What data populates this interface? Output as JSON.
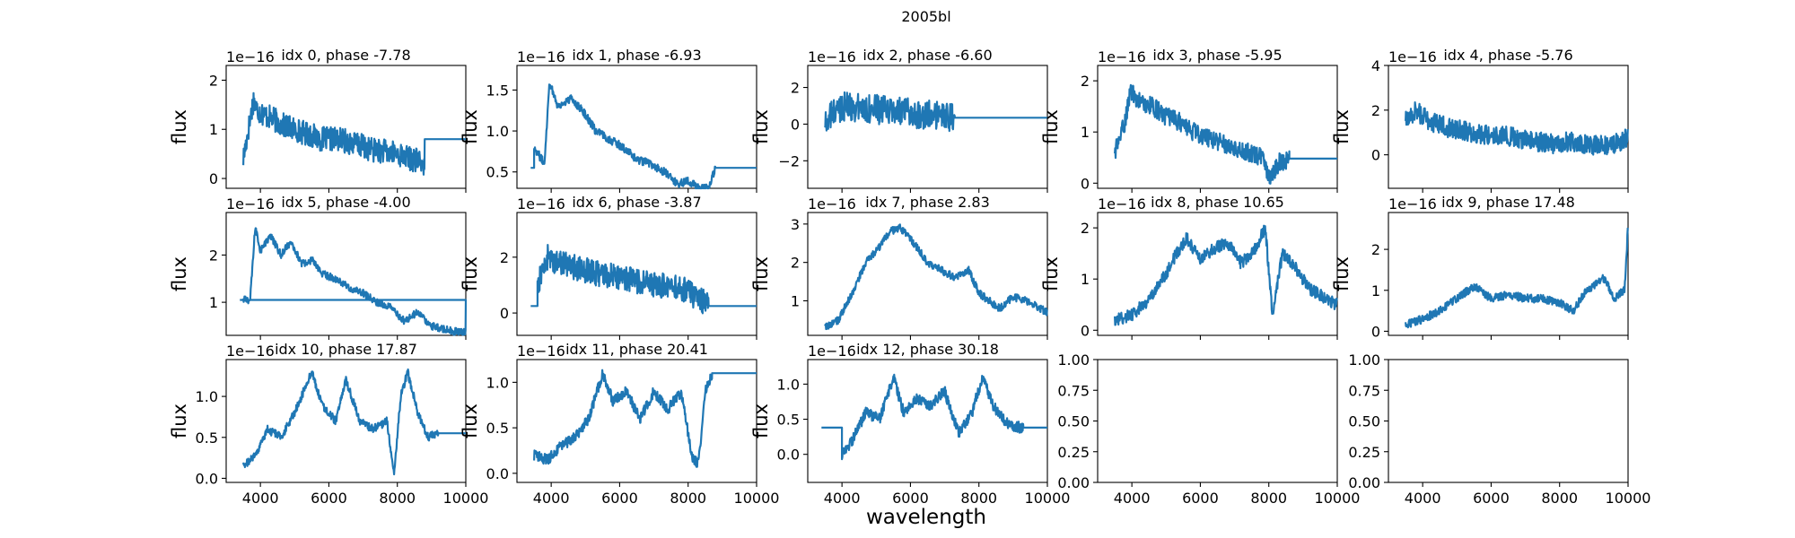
{
  "chart_data": {
    "type": "line",
    "title": "2005bl",
    "xlabel": "wavelength",
    "ylabel": "flux",
    "grid": false,
    "legend": "none",
    "color": "#1f77b4",
    "xlim": [
      3000,
      10000
    ],
    "xticks": [
      4000,
      6000,
      8000,
      10000
    ],
    "panels": [
      {
        "title": "idx 0, phase -7.78",
        "offset_label": "1e−16",
        "ylim": [
          -0.2,
          2.3
        ],
        "yticks": [
          0,
          1,
          2
        ],
        "range": [
          3500,
          8800
        ],
        "flat_end": 10000,
        "flat_value": 0.8,
        "noise": 0.25,
        "x": [
          3500,
          3700,
          3800,
          3900,
          4100,
          4400,
          4600,
          5000,
          5400,
          5800,
          6300,
          6800,
          7200,
          7600,
          8000,
          8400,
          8800
        ],
        "y": [
          0.4,
          1.2,
          1.6,
          1.4,
          1.3,
          1.2,
          1.1,
          1.0,
          0.9,
          0.8,
          0.8,
          0.7,
          0.6,
          0.55,
          0.5,
          0.4,
          0.3
        ]
      },
      {
        "title": "idx 1, phase -6.93",
        "offset_label": "1e−16",
        "ylim": [
          0.3,
          1.8
        ],
        "yticks": [
          0.5,
          1.0,
          1.5
        ],
        "range": [
          3500,
          8800
        ],
        "flat_start": 3400,
        "flat_end": 10000,
        "flat_value": 0.55,
        "noise": 0.05,
        "x": [
          3500,
          3800,
          3950,
          4200,
          4600,
          5000,
          5300,
          5700,
          6100,
          6500,
          6900,
          7300,
          7700,
          8000,
          8300,
          8600,
          8800
        ],
        "y": [
          0.8,
          0.6,
          1.6,
          1.3,
          1.4,
          1.2,
          1.0,
          0.9,
          0.8,
          0.65,
          0.6,
          0.5,
          0.35,
          0.4,
          0.3,
          0.3,
          0.55
        ]
      },
      {
        "title": "idx 2, phase -6.60",
        "offset_label": "1e−16",
        "ylim": [
          -3.5,
          3.2
        ],
        "yticks": [
          -2,
          0,
          2
        ],
        "range": [
          3500,
          7300
        ],
        "flat_end": 10000,
        "flat_value": 0.35,
        "noise": 0.8,
        "x": [
          3500,
          3700,
          4000,
          4500,
          5000,
          5500,
          6000,
          6500,
          7000,
          7300
        ],
        "y": [
          0.0,
          0.5,
          1.0,
          0.9,
          0.8,
          0.7,
          0.6,
          0.5,
          0.4,
          0.35
        ]
      },
      {
        "title": "idx 3, phase -5.95",
        "offset_label": "1e−16",
        "ylim": [
          -0.1,
          2.3
        ],
        "yticks": [
          0,
          1,
          2
        ],
        "range": [
          3500,
          8600
        ],
        "flat_end": 10000,
        "flat_value": 0.48,
        "noise": 0.18,
        "x": [
          3500,
          3800,
          3950,
          4200,
          4600,
          5000,
          5400,
          5800,
          6200,
          6600,
          7000,
          7400,
          7800,
          8000,
          8300,
          8600
        ],
        "y": [
          0.6,
          1.2,
          1.8,
          1.6,
          1.5,
          1.3,
          1.2,
          1.0,
          0.9,
          0.8,
          0.7,
          0.6,
          0.5,
          0.1,
          0.4,
          0.48
        ]
      },
      {
        "title": "idx 4, phase -5.76",
        "offset_label": "1e−16",
        "ylim": [
          -1.5,
          4.0
        ],
        "yticks": [
          0,
          2,
          4
        ],
        "range": [
          3500,
          10000
        ],
        "noise": 0.45,
        "x": [
          3500,
          3800,
          4200,
          4800,
          5400,
          6000,
          6600,
          7200,
          7800,
          8400,
          9000,
          9600,
          10000
        ],
        "y": [
          1.5,
          2.0,
          1.5,
          1.2,
          1.0,
          0.9,
          0.8,
          0.6,
          0.5,
          0.6,
          0.4,
          0.5,
          0.8
        ]
      },
      {
        "title": "idx 5, phase -4.00",
        "offset_label": "1e−16",
        "ylim": [
          0.3,
          2.9
        ],
        "yticks": [
          1,
          2
        ],
        "range": [
          3500,
          10000
        ],
        "flat_start": 3400,
        "flat_end": 3700,
        "flat_value": 1.05,
        "noise": 0.08,
        "x": [
          3700,
          3850,
          4000,
          4300,
          4600,
          4900,
          5200,
          5500,
          5800,
          6200,
          6600,
          7000,
          7400,
          7800,
          8200,
          8600,
          9000,
          9500,
          10000
        ],
        "y": [
          1.05,
          2.6,
          2.1,
          2.4,
          2.0,
          2.3,
          1.8,
          1.9,
          1.6,
          1.5,
          1.3,
          1.2,
          1.0,
          0.9,
          0.6,
          0.8,
          0.5,
          0.4,
          0.35
        ]
      },
      {
        "title": "idx 6, phase -3.87",
        "offset_label": "1e−16",
        "ylim": [
          -0.8,
          3.6
        ],
        "yticks": [
          0,
          2
        ],
        "range": [
          3600,
          8600
        ],
        "flat_start": 3400,
        "flat_end": 10000,
        "flat_value": 0.25,
        "noise": 0.45,
        "x": [
          3600,
          3900,
          4200,
          4800,
          5400,
          6000,
          6600,
          7200,
          7800,
          8200,
          8600
        ],
        "y": [
          1.0,
          2.0,
          1.8,
          1.6,
          1.4,
          1.3,
          1.1,
          1.0,
          0.9,
          0.6,
          0.3
        ]
      },
      {
        "title": "idx 7, phase 2.83",
        "offset_label": "1e−16",
        "ylim": [
          0.1,
          3.3
        ],
        "yticks": [
          1,
          2,
          3
        ],
        "range": [
          3500,
          10000
        ],
        "noise": 0.1,
        "x": [
          3500,
          3900,
          4300,
          4700,
          5100,
          5400,
          5700,
          6100,
          6500,
          6900,
          7300,
          7700,
          8000,
          8300,
          8600,
          9000,
          9400,
          10000
        ],
        "y": [
          0.3,
          0.5,
          1.2,
          2.0,
          2.4,
          2.8,
          2.9,
          2.5,
          2.0,
          1.8,
          1.6,
          1.8,
          1.2,
          1.0,
          0.8,
          1.1,
          1.0,
          0.7
        ]
      },
      {
        "title": "idx 8, phase 10.65",
        "offset_label": "1e−16",
        "ylim": [
          -0.1,
          2.3
        ],
        "yticks": [
          0,
          1,
          2
        ],
        "range": [
          3500,
          10000
        ],
        "noise": 0.12,
        "x": [
          3500,
          4000,
          4500,
          5000,
          5300,
          5600,
          6000,
          6400,
          6800,
          7200,
          7600,
          7900,
          8100,
          8400,
          8800,
          9200,
          10000
        ],
        "y": [
          0.2,
          0.3,
          0.6,
          1.1,
          1.5,
          1.8,
          1.4,
          1.6,
          1.7,
          1.3,
          1.6,
          2.0,
          0.3,
          1.5,
          1.2,
          0.8,
          0.5
        ]
      },
      {
        "title": "idx 9, phase 17.48",
        "offset_label": "1e−16",
        "ylim": [
          -0.1,
          2.9
        ],
        "yticks": [
          0,
          1,
          2
        ],
        "range": [
          3500,
          10000
        ],
        "noise": 0.1,
        "x": [
          3500,
          4000,
          4500,
          5000,
          5500,
          6000,
          6500,
          7000,
          7500,
          8000,
          8400,
          8700,
          9000,
          9300,
          9600,
          9900,
          10000
        ],
        "y": [
          0.15,
          0.3,
          0.5,
          0.8,
          1.1,
          0.8,
          0.9,
          0.8,
          0.8,
          0.7,
          0.5,
          0.9,
          1.1,
          1.3,
          0.8,
          1.0,
          2.6
        ]
      },
      {
        "title": "idx 10, phase 17.87",
        "offset_label": "1e−16",
        "ylim": [
          -0.05,
          1.45
        ],
        "yticks": [
          0.0,
          0.5,
          1.0
        ],
        "range": [
          3500,
          9200
        ],
        "flat_end": 10000,
        "flat_value": 0.55,
        "noise": 0.05,
        "x": [
          3500,
          3900,
          4200,
          4600,
          5000,
          5500,
          5800,
          6200,
          6500,
          6900,
          7300,
          7700,
          7900,
          8100,
          8300,
          8600,
          8900,
          9200
        ],
        "y": [
          0.15,
          0.3,
          0.6,
          0.5,
          0.8,
          1.3,
          0.9,
          0.7,
          1.2,
          0.7,
          0.6,
          0.7,
          0.05,
          1.0,
          1.3,
          0.8,
          0.5,
          0.55
        ]
      },
      {
        "title": "idx 11, phase 20.41",
        "offset_label": "1e−16",
        "ylim": [
          -0.1,
          1.25
        ],
        "yticks": [
          0.0,
          0.5,
          1.0
        ],
        "range": [
          3500,
          8700
        ],
        "flat_end": 10000,
        "flat_value": 1.1,
        "noise": 0.06,
        "x": [
          3500,
          3900,
          4300,
          4700,
          5100,
          5500,
          5800,
          6200,
          6600,
          7000,
          7400,
          7800,
          8100,
          8300,
          8500,
          8700
        ],
        "y": [
          0.2,
          0.15,
          0.3,
          0.4,
          0.6,
          1.1,
          0.8,
          0.9,
          0.6,
          0.9,
          0.7,
          0.9,
          0.2,
          0.1,
          0.9,
          1.1
        ]
      },
      {
        "title": "idx 12, phase 30.18",
        "offset_label": "1e−16",
        "ylim": [
          -0.4,
          1.35
        ],
        "yticks": [
          0.0,
          0.5,
          1.0
        ],
        "range": [
          4000,
          9300
        ],
        "flat_start": 3400,
        "flat_end": 10000,
        "flat_value": 0.38,
        "noise": 0.08,
        "x": [
          4000,
          4300,
          4700,
          5100,
          5500,
          5800,
          6200,
          6600,
          7000,
          7400,
          7800,
          8100,
          8400,
          8700,
          9000,
          9300
        ],
        "y": [
          0.0,
          0.2,
          0.6,
          0.5,
          1.1,
          0.6,
          0.8,
          0.7,
          0.9,
          0.3,
          0.6,
          1.1,
          0.7,
          0.5,
          0.4,
          0.38
        ]
      },
      {
        "title": "",
        "offset_label": "",
        "ylim": [
          0.0,
          1.0
        ],
        "yticks": [
          0.0,
          0.25,
          0.5,
          0.75,
          1.0
        ],
        "empty": true
      },
      {
        "title": "",
        "offset_label": "",
        "ylim": [
          0.0,
          1.0
        ],
        "yticks": [
          0.0,
          0.25,
          0.5,
          0.75,
          1.0
        ],
        "empty": true
      }
    ]
  }
}
